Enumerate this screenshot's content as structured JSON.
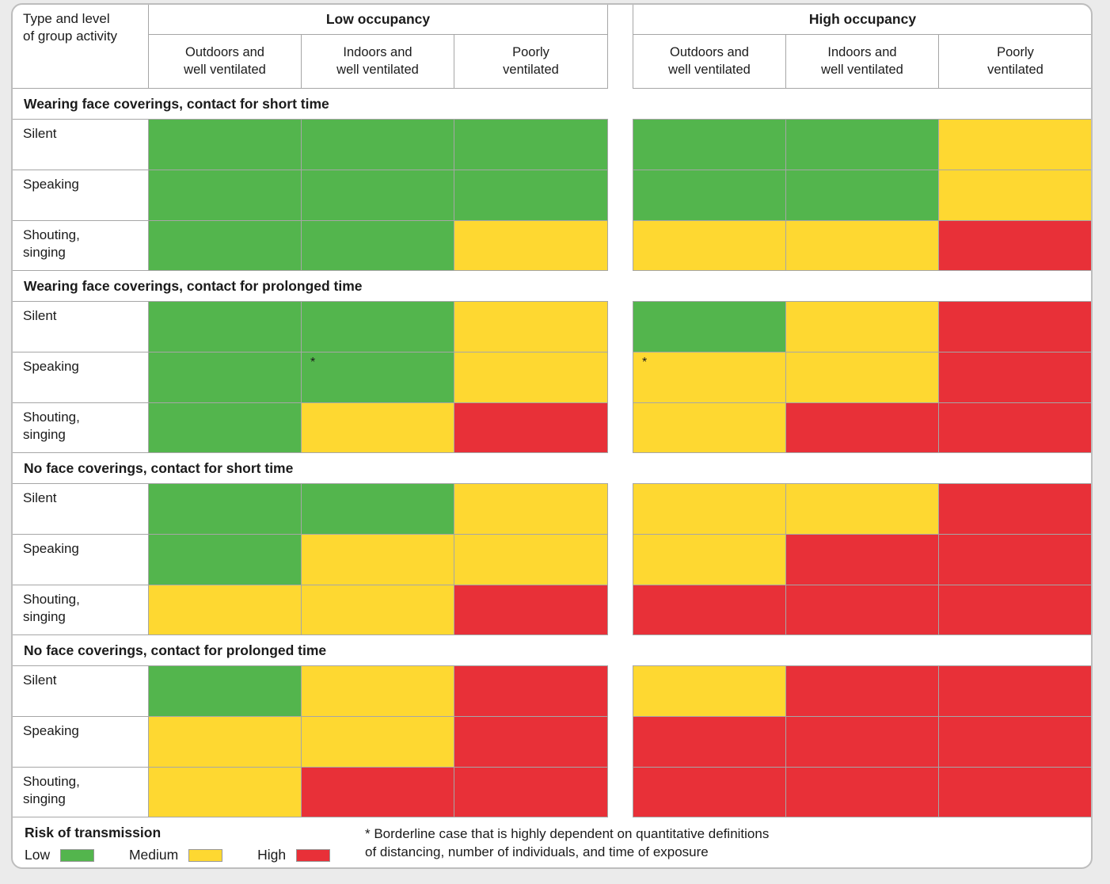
{
  "colors": {
    "low": "#53b54d",
    "medium": "#fed831",
    "high": "#e83038",
    "gridline": "#a6a6a6",
    "card_border": "#bdbdbd",
    "page_background": "#ebebeb"
  },
  "header": {
    "corner_lines": [
      "Type and level",
      "of group activity"
    ],
    "groups": [
      "Low occupancy",
      "High occupancy"
    ],
    "subcolumns": [
      [
        "Outdoors and",
        "well ventilated"
      ],
      [
        "Indoors and",
        "well ventilated"
      ],
      [
        "Poorly",
        "ventilated"
      ]
    ]
  },
  "chart_data": {
    "type": "heatmap",
    "risk_levels": [
      "low",
      "medium",
      "high"
    ],
    "column_groups": [
      "Low occupancy",
      "High occupancy"
    ],
    "columns_per_group": [
      "Outdoors and well ventilated",
      "Indoors and well ventilated",
      "Poorly ventilated"
    ],
    "sections": [
      {
        "title": "Wearing face coverings, contact for short time",
        "rows": [
          {
            "label": "Silent",
            "values": [
              "low",
              "low",
              "low",
              "low",
              "low",
              "medium"
            ]
          },
          {
            "label": "Speaking",
            "values": [
              "low",
              "low",
              "low",
              "low",
              "low",
              "medium"
            ]
          },
          {
            "label": "Shouting, singing",
            "values": [
              "low",
              "low",
              "medium",
              "medium",
              "medium",
              "high"
            ]
          }
        ]
      },
      {
        "title": "Wearing face coverings, contact for prolonged time",
        "rows": [
          {
            "label": "Silent",
            "values": [
              "low",
              "low",
              "medium",
              "low",
              "medium",
              "high"
            ]
          },
          {
            "label": "Speaking",
            "values": [
              "low",
              "low",
              "medium",
              "medium",
              "medium",
              "high"
            ],
            "markers": [
              "",
              "*",
              "",
              "*",
              "",
              ""
            ]
          },
          {
            "label": "Shouting, singing",
            "values": [
              "low",
              "medium",
              "high",
              "medium",
              "high",
              "high"
            ]
          }
        ]
      },
      {
        "title": "No face coverings, contact for short time",
        "rows": [
          {
            "label": "Silent",
            "values": [
              "low",
              "low",
              "medium",
              "medium",
              "medium",
              "high"
            ]
          },
          {
            "label": "Speaking",
            "values": [
              "low",
              "medium",
              "medium",
              "medium",
              "high",
              "high"
            ]
          },
          {
            "label": "Shouting, singing",
            "values": [
              "medium",
              "medium",
              "high",
              "high",
              "high",
              "high"
            ]
          }
        ]
      },
      {
        "title": "No face coverings, contact for prolonged time",
        "rows": [
          {
            "label": "Silent",
            "values": [
              "low",
              "medium",
              "high",
              "medium",
              "high",
              "high"
            ]
          },
          {
            "label": "Speaking",
            "values": [
              "medium",
              "medium",
              "high",
              "high",
              "high",
              "high"
            ]
          },
          {
            "label": "Shouting, singing",
            "values": [
              "medium",
              "high",
              "high",
              "high",
              "high",
              "high"
            ]
          }
        ]
      }
    ]
  },
  "legend": {
    "title": "Risk of transmission",
    "items": [
      {
        "label": "Low",
        "level": "low"
      },
      {
        "label": "Medium",
        "level": "medium"
      },
      {
        "label": "High",
        "level": "high"
      }
    ]
  },
  "footnote": {
    "lines": [
      "* Borderline case that is highly dependent on quantitative definitions",
      "of distancing, number of individuals, and time of exposure"
    ]
  }
}
